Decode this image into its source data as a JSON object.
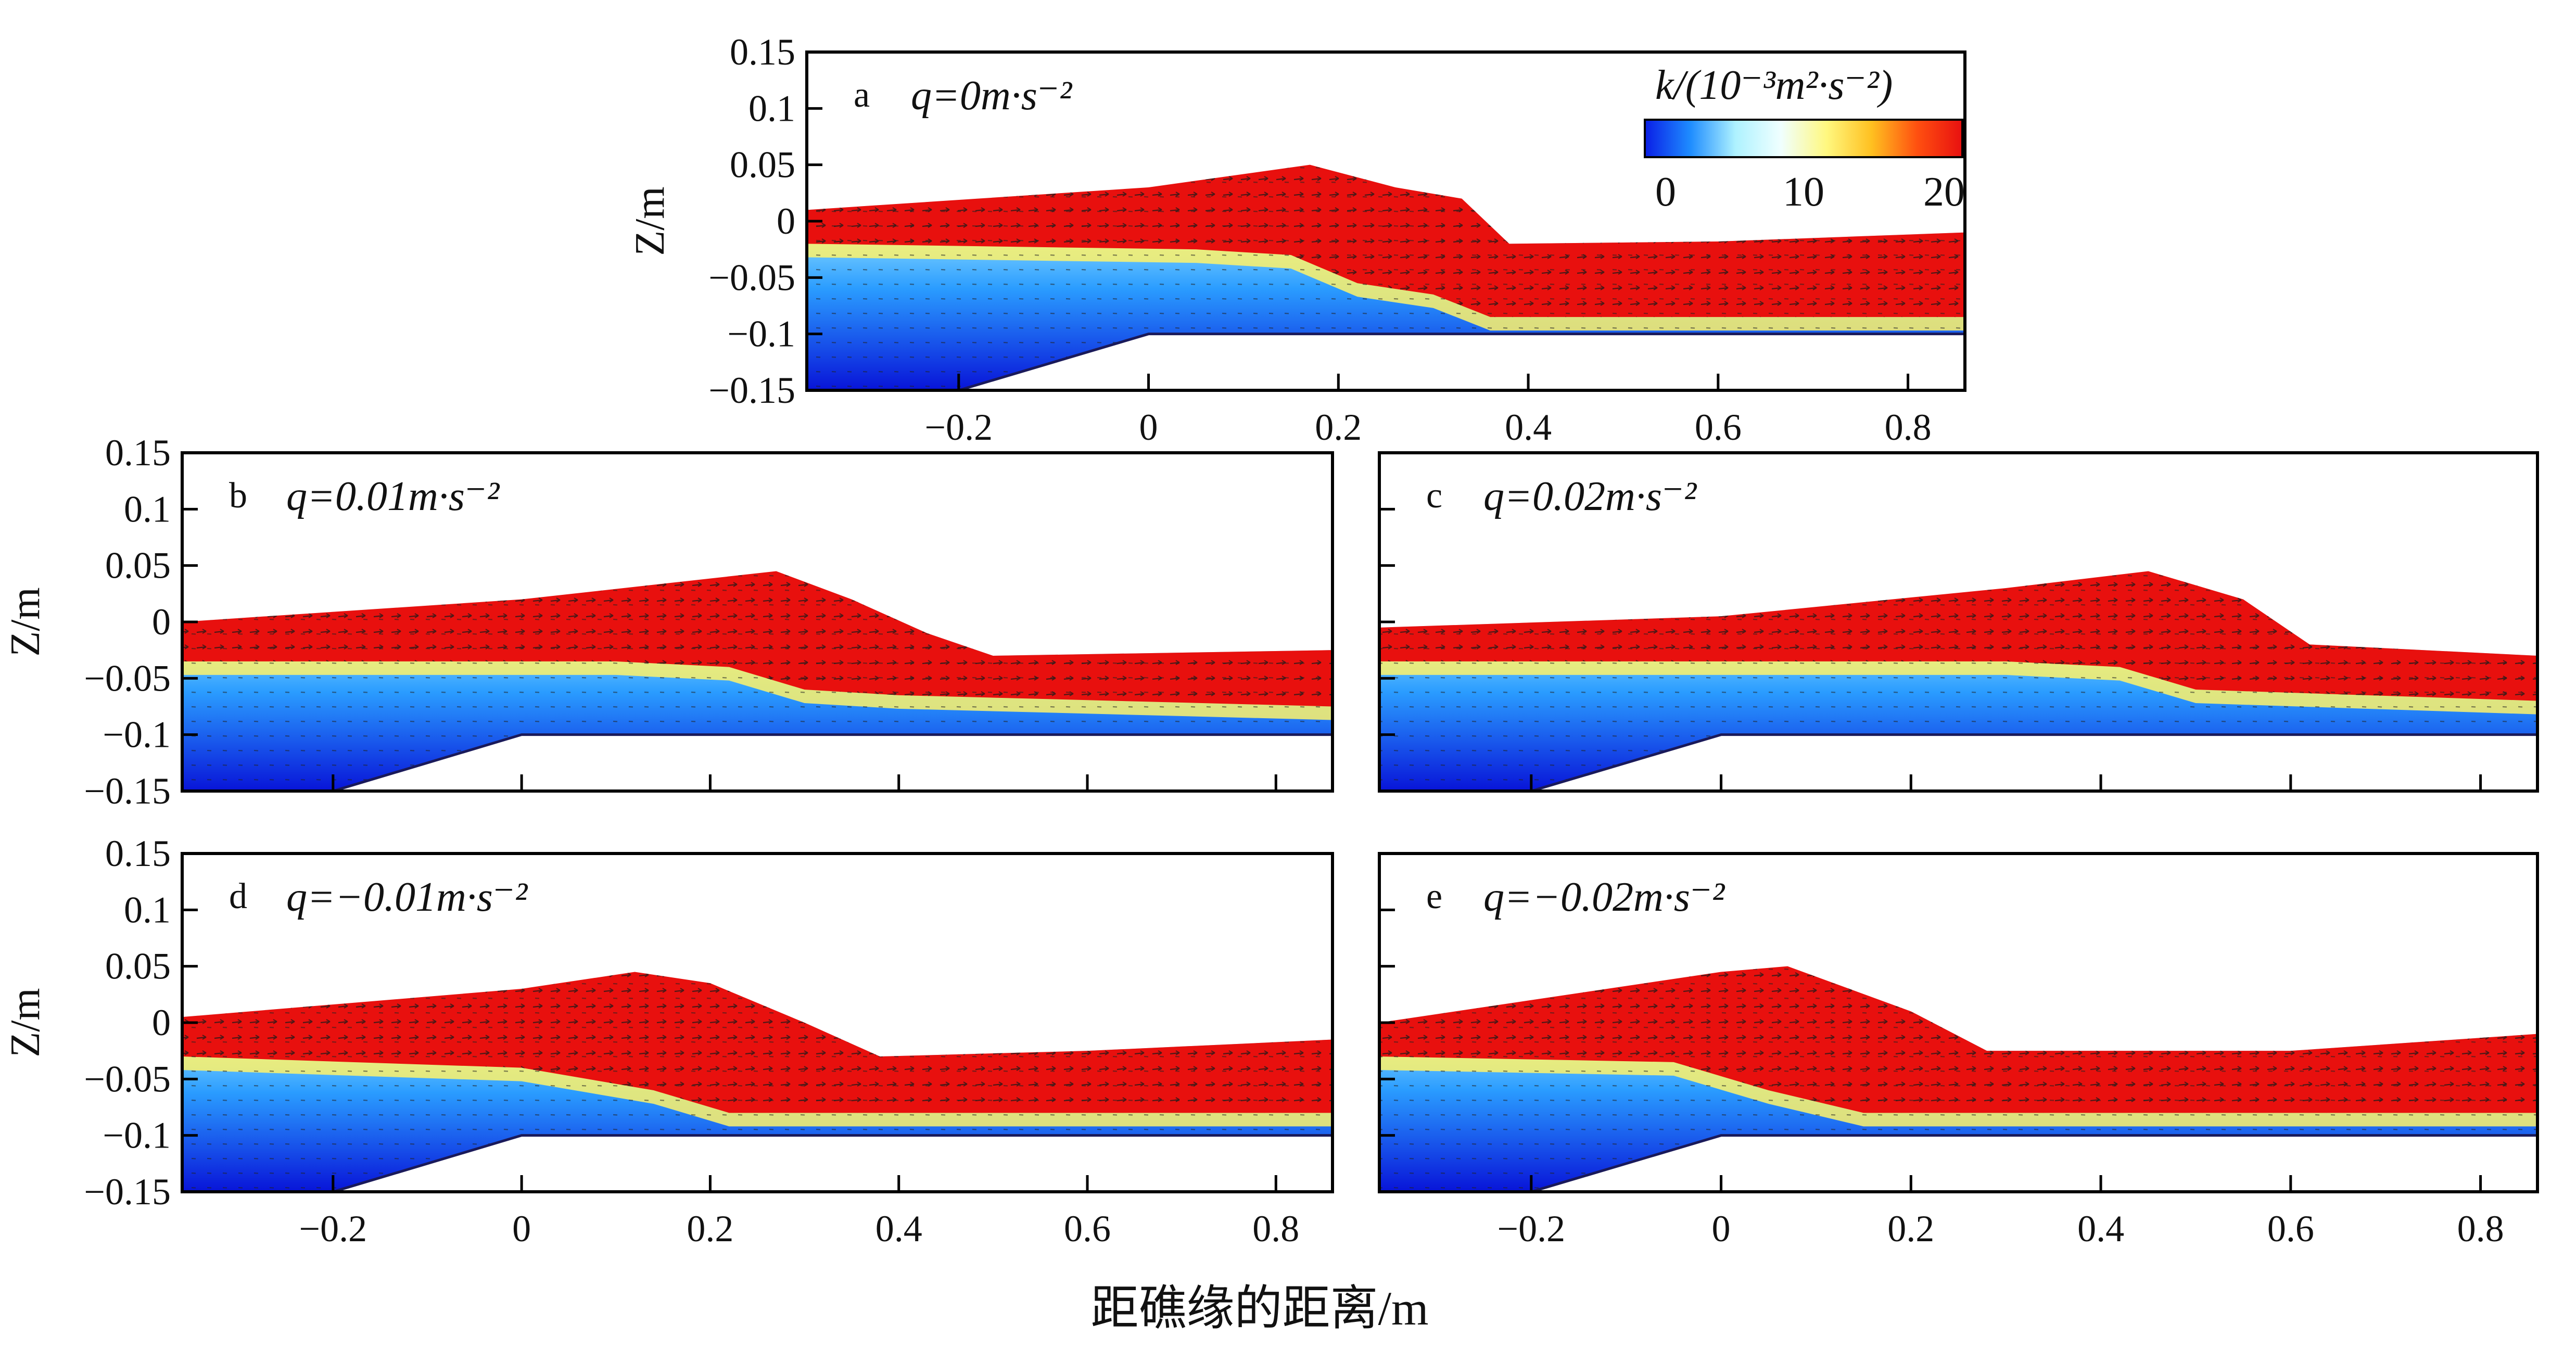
{
  "figure": {
    "xlabel": "距礁缘的距离/m",
    "ylabel": "Z/m",
    "colorbar": {
      "title": "k/(10⁻³m²·s⁻²)",
      "ticks": [
        "0",
        "10",
        "20"
      ],
      "colors": [
        "#0a1ee6",
        "#1e8cff",
        "#aef2ff",
        "#f0ffff",
        "#fff880",
        "#ffc020",
        "#ff5010",
        "#e81010"
      ]
    }
  },
  "chart_data": [
    {
      "type": "heatmap",
      "panel": "a",
      "label": "a",
      "q_text": "q=0m·s⁻²",
      "q_value": 0,
      "xlabel": "",
      "ylabel": "Z/m",
      "xlim": [
        -0.36,
        0.86
      ],
      "ylim": [
        -0.15,
        0.15
      ],
      "xticks": [
        "-0.2",
        "0",
        "0.2",
        "0.4",
        "0.6",
        "0.8"
      ],
      "yticks": [
        "0.15",
        "0.1",
        "0.05",
        "0",
        "-0.05",
        "-0.1",
        "-0.15"
      ],
      "surface": [
        [
          -0.36,
          0.01
        ],
        [
          0.0,
          0.03
        ],
        [
          0.17,
          0.05
        ],
        [
          0.26,
          0.03
        ],
        [
          0.33,
          0.02
        ],
        [
          0.38,
          -0.02
        ],
        [
          0.6,
          -0.018
        ],
        [
          0.86,
          -0.01
        ]
      ],
      "interface": [
        [
          -0.36,
          -0.02
        ],
        [
          0.05,
          -0.025
        ],
        [
          0.15,
          -0.03
        ],
        [
          0.22,
          -0.055
        ],
        [
          0.3,
          -0.065
        ],
        [
          0.36,
          -0.085
        ],
        [
          0.86,
          -0.085
        ]
      ],
      "colormap_range": [
        0,
        20
      ]
    },
    {
      "type": "heatmap",
      "panel": "b",
      "label": "b",
      "q_text": "q=0.01m·s⁻²",
      "q_value": 0.01,
      "xlabel": "",
      "ylabel": "Z/m",
      "xlim": [
        -0.36,
        0.86
      ],
      "ylim": [
        -0.15,
        0.15
      ],
      "xticks": [],
      "yticks": [
        "0.15",
        "0.1",
        "0.05",
        "0",
        "-0.05",
        "-0.1",
        "-0.15"
      ],
      "surface": [
        [
          -0.36,
          0.0
        ],
        [
          0.0,
          0.02
        ],
        [
          0.27,
          0.045
        ],
        [
          0.35,
          0.02
        ],
        [
          0.43,
          -0.01
        ],
        [
          0.5,
          -0.03
        ],
        [
          0.86,
          -0.025
        ]
      ],
      "interface": [
        [
          -0.36,
          -0.035
        ],
        [
          0.1,
          -0.035
        ],
        [
          0.22,
          -0.04
        ],
        [
          0.3,
          -0.06
        ],
        [
          0.4,
          -0.065
        ],
        [
          0.86,
          -0.075
        ]
      ],
      "colormap_range": [
        0,
        20
      ]
    },
    {
      "type": "heatmap",
      "panel": "c",
      "label": "c",
      "q_text": "q=0.02m·s⁻²",
      "q_value": 0.02,
      "xlabel": "",
      "ylabel": "",
      "xlim": [
        -0.36,
        0.86
      ],
      "ylim": [
        -0.15,
        0.15
      ],
      "xticks": [],
      "yticks": [],
      "surface": [
        [
          -0.36,
          -0.005
        ],
        [
          0.0,
          0.005
        ],
        [
          0.3,
          0.03
        ],
        [
          0.45,
          0.045
        ],
        [
          0.55,
          0.02
        ],
        [
          0.62,
          -0.02
        ],
        [
          0.86,
          -0.03
        ]
      ],
      "interface": [
        [
          -0.36,
          -0.035
        ],
        [
          0.3,
          -0.035
        ],
        [
          0.42,
          -0.04
        ],
        [
          0.5,
          -0.06
        ],
        [
          0.86,
          -0.07
        ]
      ],
      "colormap_range": [
        0,
        20
      ]
    },
    {
      "type": "heatmap",
      "panel": "d",
      "label": "d",
      "q_text": "q=−0.01m·s⁻²",
      "q_value": -0.01,
      "xlabel": "",
      "ylabel": "Z/m",
      "xlim": [
        -0.36,
        0.86
      ],
      "ylim": [
        -0.15,
        0.15
      ],
      "xticks": [
        "-0.2",
        "0",
        "0.2",
        "0.4",
        "0.6",
        "0.8"
      ],
      "yticks": [
        "0.15",
        "0.1",
        "0.05",
        "0",
        "-0.05",
        "-0.1",
        "-0.15"
      ],
      "surface": [
        [
          -0.36,
          0.005
        ],
        [
          0.0,
          0.03
        ],
        [
          0.12,
          0.045
        ],
        [
          0.2,
          0.035
        ],
        [
          0.3,
          0.0
        ],
        [
          0.38,
          -0.03
        ],
        [
          0.6,
          -0.025
        ],
        [
          0.86,
          -0.015
        ]
      ],
      "interface": [
        [
          -0.36,
          -0.03
        ],
        [
          0.0,
          -0.04
        ],
        [
          0.14,
          -0.06
        ],
        [
          0.22,
          -0.08
        ],
        [
          0.86,
          -0.08
        ]
      ],
      "colormap_range": [
        0,
        20
      ]
    },
    {
      "type": "heatmap",
      "panel": "e",
      "label": "e",
      "q_text": "q=−0.02m·s⁻²",
      "q_value": -0.02,
      "xlabel": "",
      "ylabel": "",
      "xlim": [
        -0.36,
        0.86
      ],
      "ylim": [
        -0.15,
        0.15
      ],
      "xticks": [
        "-0.2",
        "0",
        "0.2",
        "0.4",
        "0.6",
        "0.8"
      ],
      "yticks": [],
      "surface": [
        [
          -0.36,
          0.0
        ],
        [
          0.0,
          0.045
        ],
        [
          0.07,
          0.05
        ],
        [
          0.2,
          0.01
        ],
        [
          0.28,
          -0.025
        ],
        [
          0.6,
          -0.025
        ],
        [
          0.86,
          -0.01
        ]
      ],
      "interface": [
        [
          -0.36,
          -0.03
        ],
        [
          -0.05,
          -0.035
        ],
        [
          0.05,
          -0.06
        ],
        [
          0.15,
          -0.08
        ],
        [
          0.86,
          -0.08
        ]
      ],
      "colormap_range": [
        0,
        20
      ]
    }
  ]
}
